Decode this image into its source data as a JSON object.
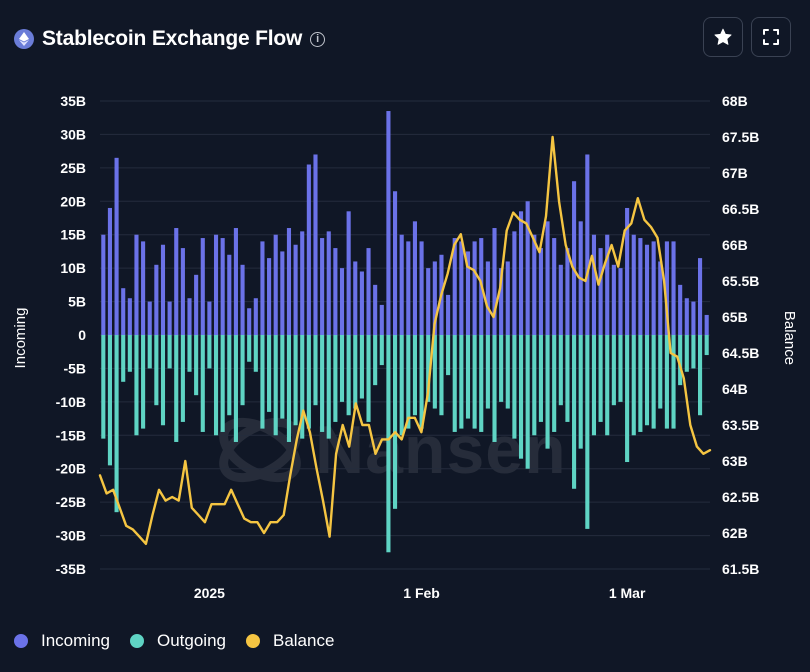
{
  "header": {
    "title": "Stablecoin Exchange Flow",
    "info_symbol": "i",
    "icon": "ethereum-icon"
  },
  "buttons": {
    "star_icon": "star-icon",
    "expand_icon": "fullscreen-icon"
  },
  "watermark": {
    "text": "Nansen"
  },
  "legend": {
    "items": [
      {
        "label": "Incoming",
        "color": "#6b72e8"
      },
      {
        "label": "Outgoing",
        "color": "#5fd4c4"
      },
      {
        "label": "Balance",
        "color": "#f5c542"
      }
    ]
  },
  "chart_data": {
    "type": "bar",
    "x_tick_labels": [
      "2025",
      "1 Feb",
      "1 Mar"
    ],
    "left_axis": {
      "label": "Incoming",
      "range": [
        -35,
        35
      ],
      "ticks": [
        "35B",
        "30B",
        "25B",
        "20B",
        "15B",
        "10B",
        "5B",
        "0",
        "-5B",
        "-10B",
        "-15B",
        "-20B",
        "-25B",
        "-30B",
        "-35B"
      ]
    },
    "right_axis": {
      "label": "Balance",
      "range": [
        61.5,
        68
      ],
      "ticks": [
        "68B",
        "67.5B",
        "67B",
        "66.5B",
        "66B",
        "65.5B",
        "65B",
        "64.5B",
        "64B",
        "63.5B",
        "63B",
        "62.5B",
        "62B",
        "61.5B"
      ]
    },
    "series": [
      {
        "name": "Incoming",
        "color": "#6b72e8",
        "values": [
          15.0,
          19.0,
          26.5,
          7.0,
          5.5,
          15.0,
          14.0,
          5.0,
          10.5,
          13.5,
          5.0,
          16.0,
          13.0,
          5.5,
          9.0,
          14.5,
          5.0,
          15.0,
          14.5,
          12.0,
          16.0,
          10.5,
          4.0,
          5.5,
          14.0,
          11.5,
          15.0,
          12.5,
          16.0,
          13.5,
          15.5,
          25.5,
          27.0,
          14.5,
          15.5,
          13.0,
          10.0,
          18.5,
          11.0,
          9.5,
          13.0,
          7.5,
          4.5,
          33.5,
          21.5,
          15.0,
          14.0,
          17.0,
          14.0,
          10.0,
          11.0,
          12.0,
          6.0,
          14.5,
          14.0,
          12.5,
          14.0,
          14.5,
          11.0,
          16.0,
          10.0,
          11.0,
          15.5,
          18.5,
          20.0,
          15.0,
          13.0,
          17.0,
          14.5,
          10.5,
          13.0,
          23.0,
          17.0,
          27.0,
          15.0,
          13.0,
          15.0,
          10.5,
          10.0,
          19.0,
          15.0,
          14.5,
          13.5,
          14.0,
          11.0,
          14.0,
          14.0,
          7.5,
          5.5,
          5.0,
          11.5,
          3.0
        ]
      },
      {
        "name": "Outgoing",
        "color": "#5fd4c4",
        "values": [
          -15.5,
          -19.5,
          -26.5,
          -7.0,
          -5.5,
          -15.0,
          -14.0,
          -5.0,
          -10.5,
          -13.5,
          -5.0,
          -16.0,
          -13.0,
          -5.5,
          -9.0,
          -14.5,
          -5.0,
          -15.0,
          -14.5,
          -12.0,
          -16.0,
          -10.5,
          -4.0,
          -5.5,
          -14.0,
          -11.5,
          -15.0,
          -12.5,
          -16.0,
          -13.5,
          -15.5,
          -14.0,
          -10.5,
          -14.5,
          -15.5,
          -13.0,
          -10.0,
          -12.0,
          -11.0,
          -9.5,
          -13.0,
          -7.5,
          -4.5,
          -32.5,
          -26.0,
          -15.0,
          -14.0,
          -12.0,
          -14.0,
          -10.0,
          -11.0,
          -12.0,
          -6.0,
          -14.5,
          -14.0,
          -12.5,
          -14.0,
          -14.5,
          -11.0,
          -16.0,
          -10.0,
          -11.0,
          -15.5,
          -18.5,
          -20.0,
          -15.0,
          -13.0,
          -17.0,
          -14.5,
          -10.5,
          -13.0,
          -23.0,
          -17.0,
          -29.0,
          -15.0,
          -13.0,
          -15.0,
          -10.5,
          -10.0,
          -19.0,
          -15.0,
          -14.5,
          -13.5,
          -14.0,
          -11.0,
          -14.0,
          -14.0,
          -7.5,
          -5.5,
          -5.0,
          -12.0,
          -3.0
        ]
      },
      {
        "name": "Balance",
        "color": "#f5c542",
        "values": [
          62.8,
          62.55,
          62.6,
          62.35,
          62.1,
          62.05,
          61.95,
          61.85,
          62.25,
          62.6,
          62.45,
          62.5,
          62.45,
          63.0,
          62.35,
          62.25,
          62.15,
          62.4,
          62.4,
          62.4,
          62.6,
          62.4,
          62.2,
          62.15,
          62.15,
          62.0,
          62.15,
          62.15,
          62.25,
          62.8,
          63.3,
          63.7,
          63.4,
          62.9,
          62.45,
          61.95,
          63.1,
          63.5,
          63.2,
          63.8,
          63.5,
          63.5,
          63.1,
          63.3,
          63.3,
          63.4,
          63.3,
          63.6,
          63.6,
          63.4,
          63.95,
          64.9,
          65.3,
          65.6,
          66.0,
          66.15,
          65.7,
          65.65,
          65.5,
          65.15,
          65.0,
          65.4,
          66.2,
          66.45,
          66.35,
          66.3,
          66.1,
          65.9,
          66.4,
          67.5,
          66.6,
          66.0,
          65.7,
          65.55,
          65.5,
          65.85,
          65.45,
          65.75,
          66.0,
          65.7,
          66.2,
          66.3,
          66.65,
          66.35,
          66.25,
          66.1,
          65.5,
          64.5,
          64.45,
          64.15,
          63.5,
          63.2,
          63.1,
          63.15
        ]
      }
    ],
    "grid": "horizontal",
    "legend_position": "bottom-left"
  }
}
